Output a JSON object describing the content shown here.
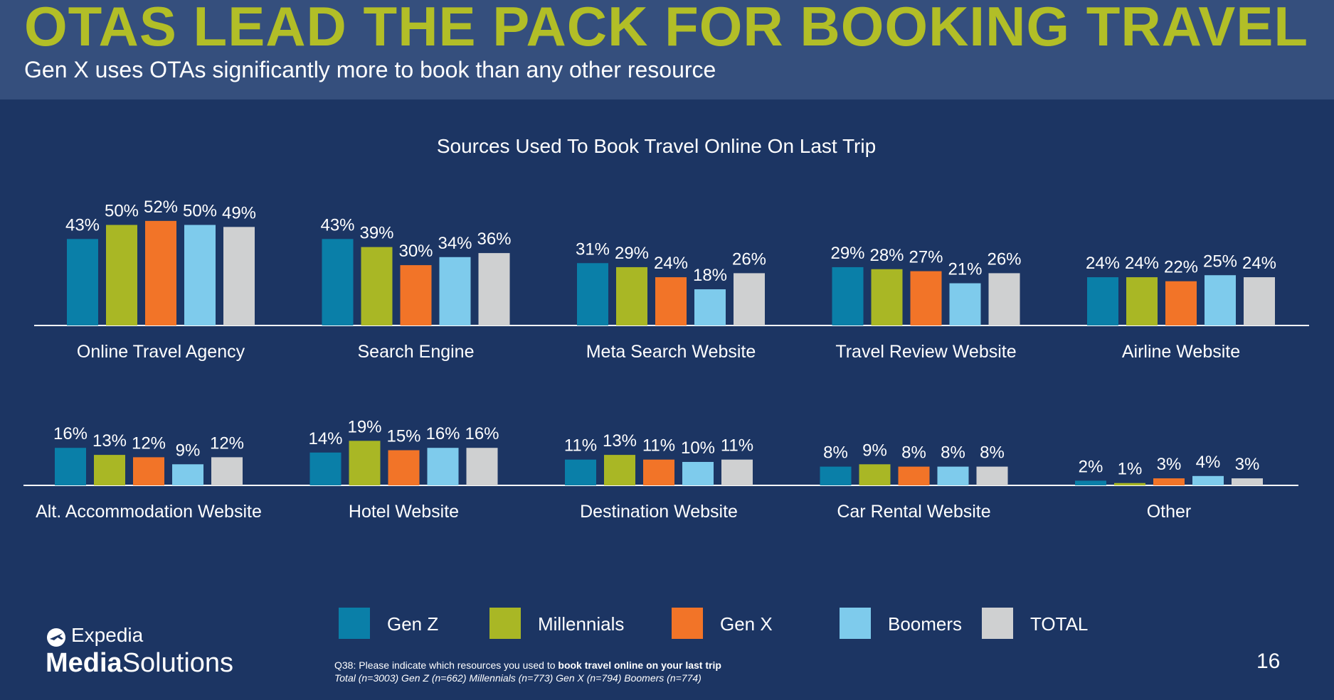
{
  "header": {
    "title": "OTAS LEAD THE PACK FOR BOOKING TRAVEL",
    "subtitle": "Gen X uses OTAs significantly more to book than any other resource"
  },
  "colors": {
    "background": "#1c3563",
    "header": "#354f7d",
    "title": "#b2be27",
    "gen_z": "#0a7fa8",
    "millennials": "#a9b725",
    "gen_x": "#f27428",
    "boomers": "#7ecbec",
    "total": "#cfd0d1"
  },
  "chart_data": {
    "type": "bar",
    "title": "Sources Used To Book Travel Online On Last Trip",
    "series": [
      {
        "name": "Gen Z",
        "color": "#0a7fa8"
      },
      {
        "name": "Millennials",
        "color": "#a9b725"
      },
      {
        "name": "Gen X",
        "color": "#f27428"
      },
      {
        "name": "Boomers",
        "color": "#7ecbec"
      },
      {
        "name": "TOTAL",
        "color": "#cfd0d1"
      }
    ],
    "panels": [
      {
        "category": "Online Travel Agency",
        "values": [
          43,
          50,
          52,
          50,
          49
        ]
      },
      {
        "category": "Search Engine",
        "values": [
          43,
          39,
          30,
          34,
          36
        ]
      },
      {
        "category": "Meta Search Website",
        "values": [
          31,
          29,
          24,
          18,
          26
        ]
      },
      {
        "category": "Travel Review Website",
        "values": [
          29,
          28,
          27,
          21,
          26
        ]
      },
      {
        "category": "Airline Website",
        "values": [
          24,
          24,
          22,
          25,
          24
        ]
      },
      {
        "category": "Alt. Accommodation Website",
        "values": [
          16,
          13,
          12,
          9,
          12
        ]
      },
      {
        "category": "Hotel Website",
        "values": [
          14,
          19,
          15,
          16,
          16
        ]
      },
      {
        "category": "Destination Website",
        "values": [
          11,
          13,
          11,
          10,
          11
        ]
      },
      {
        "category": "Car Rental Website",
        "values": [
          8,
          9,
          8,
          8,
          8
        ]
      },
      {
        "category": "Other",
        "values": [
          2,
          1,
          3,
          4,
          3
        ]
      }
    ],
    "value_suffix": "%",
    "legend_position": "bottom"
  },
  "logo": {
    "line1": "Expedia",
    "line2_bold": "Media",
    "line2_rest": "Solutions"
  },
  "footnote": {
    "line1_prefix": "Q38: Please indicate which resources you used to ",
    "line1_bold": "book travel online on your last trip",
    "line2": "Total (n=3003) Gen Z (n=662) Millennials (n=773) Gen X (n=794) Boomers (n=774)"
  },
  "page_number": "16"
}
